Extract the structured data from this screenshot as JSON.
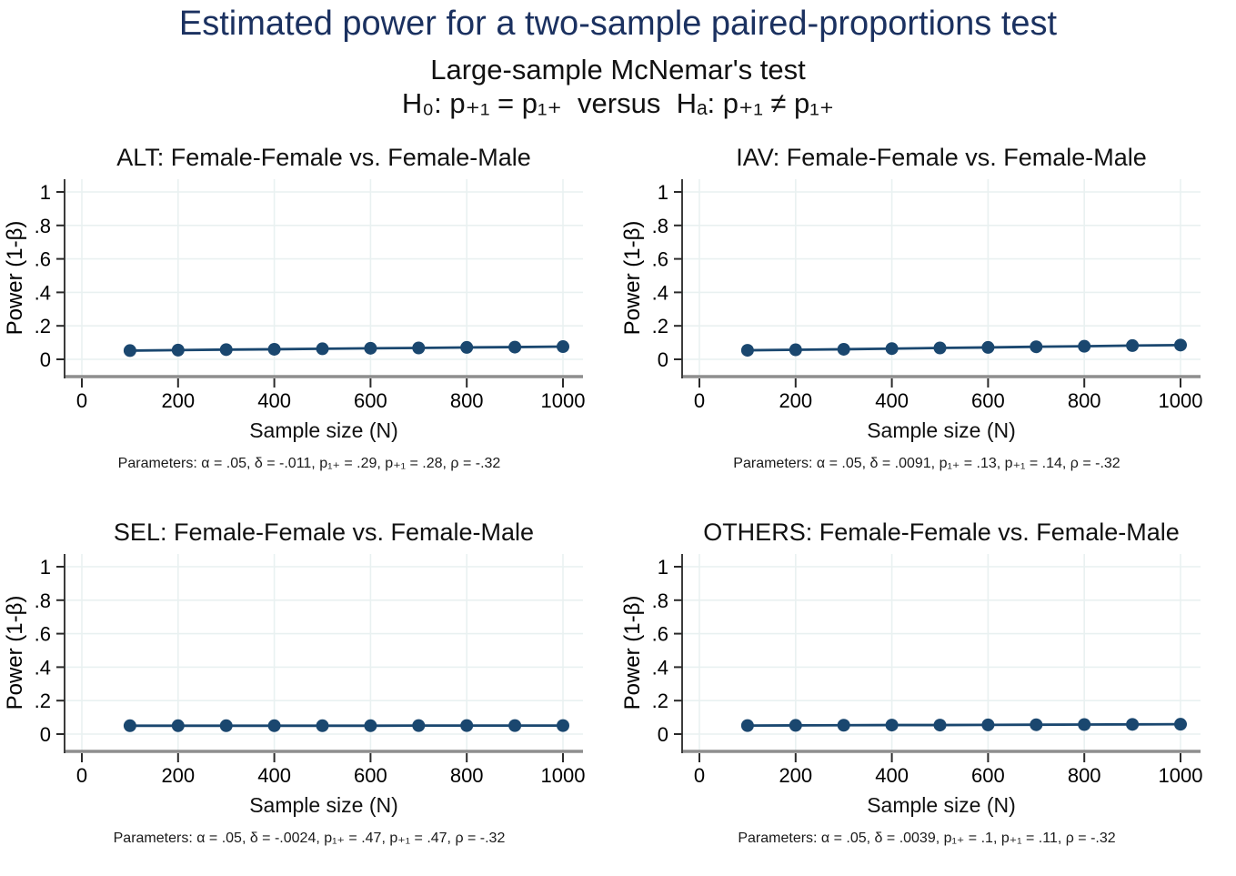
{
  "header": {
    "title": "Estimated power for a two-sample paired-proportions test",
    "subtitle1": "Large-sample McNemar's test",
    "subtitle2": "H₀: p₊₁ = p₁₊  versus  Hₐ: p₊₁ ≠ p₁₊"
  },
  "axes": {
    "xlabel": "Sample size (N)",
    "ylabel": "Power (1-β)",
    "xticks": [
      0,
      200,
      400,
      600,
      800,
      1000
    ],
    "xtick_labels": [
      "0",
      "200",
      "400",
      "600",
      "800",
      "1000"
    ],
    "yticks": [
      0,
      0.2,
      0.4,
      0.6,
      0.8,
      1
    ],
    "ytick_labels": [
      "0",
      ".2",
      ".4",
      ".6",
      ".8",
      "1"
    ],
    "xlim": [
      0,
      1000
    ],
    "ylim": [
      0,
      1
    ],
    "grid": "on",
    "legend": "none"
  },
  "colors": {
    "title_navy": "#1b3160",
    "series_navy": "#1a476f",
    "gridline": "#e9f1f1",
    "x_axis_line": "#8e8e8e",
    "y_axis_line": "#3c3c3c",
    "tick": "#2a2a2a",
    "text": "#000000",
    "background": "#ffffff"
  },
  "chart_data": [
    {
      "type": "line",
      "name": "ALT",
      "title": "ALT: Female-Female vs. Female-Male",
      "xlabel": "Sample size (N)",
      "ylabel": "Power (1-β)",
      "ylim": [
        0,
        1
      ],
      "x": [
        100,
        200,
        300,
        400,
        500,
        600,
        700,
        800,
        900,
        1000
      ],
      "values": [
        0.052,
        0.055,
        0.058,
        0.06,
        0.063,
        0.066,
        0.068,
        0.071,
        0.073,
        0.076
      ],
      "parameters": "Parameters: α = .05, δ = -.011, p₁₊ = .29, p₊₁ = .28, ρ = -.32"
    },
    {
      "type": "line",
      "name": "IAV",
      "title": "IAV: Female-Female vs. Female-Male",
      "xlabel": "Sample size (N)",
      "ylabel": "Power (1-β)",
      "ylim": [
        0,
        1
      ],
      "x": [
        100,
        200,
        300,
        400,
        500,
        600,
        700,
        800,
        900,
        1000
      ],
      "values": [
        0.054,
        0.057,
        0.06,
        0.064,
        0.068,
        0.071,
        0.075,
        0.078,
        0.082,
        0.085
      ],
      "parameters": "Parameters: α = .05, δ = .0091, p₁₊ = .13, p₊₁ = .14, ρ = -.32"
    },
    {
      "type": "line",
      "name": "SEL",
      "title": "SEL: Female-Female vs. Female-Male",
      "xlabel": "Sample size (N)",
      "ylabel": "Power (1-β)",
      "ylim": [
        0,
        1
      ],
      "x": [
        100,
        200,
        300,
        400,
        500,
        600,
        700,
        800,
        900,
        1000
      ],
      "values": [
        0.05,
        0.05,
        0.05,
        0.05,
        0.05,
        0.05,
        0.051,
        0.051,
        0.051,
        0.051
      ],
      "parameters": "Parameters: α = .05, δ = -.0024, p₁₊ = .47, p₊₁ = .47, ρ = -.32"
    },
    {
      "type": "line",
      "name": "OTHERS",
      "title": "OTHERS: Female-Female vs. Female-Male",
      "xlabel": "Sample size (N)",
      "ylabel": "Power (1-β)",
      "ylim": [
        0,
        1
      ],
      "x": [
        100,
        200,
        300,
        400,
        500,
        600,
        700,
        800,
        900,
        1000
      ],
      "values": [
        0.051,
        0.052,
        0.053,
        0.054,
        0.054,
        0.055,
        0.056,
        0.057,
        0.058,
        0.059
      ],
      "parameters": "Parameters: α = .05, δ = .0039, p₁₊ = .1, p₊₁ = .11, ρ = -.32"
    }
  ]
}
